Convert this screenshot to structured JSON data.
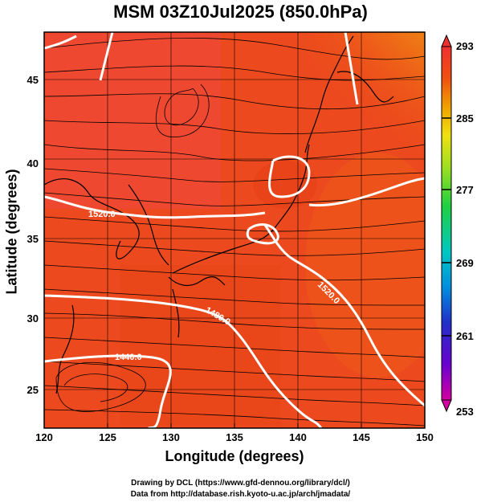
{
  "title": "MSM 03Z10Jul2025 (850.0hPa)",
  "axes": {
    "xlabel": "Longitude (degrees)",
    "ylabel": "Latitude  (degrees)",
    "xticks": [
      "120",
      "125",
      "130",
      "135",
      "140",
      "145",
      "150"
    ],
    "yticks": [
      "25",
      "30",
      "35",
      "40",
      "45"
    ],
    "xlim": [
      120,
      150
    ],
    "ylim": [
      22.5,
      47.5
    ]
  },
  "colorbar": {
    "labels": [
      "293",
      "285",
      "277",
      "269",
      "261",
      "253"
    ],
    "range": [
      253,
      293
    ],
    "colors": [
      "#d400a0",
      "#6a00d0",
      "#2030c8",
      "#0090e0",
      "#00c8c0",
      "#20d040",
      "#a0e020",
      "#f0e010",
      "#f0a000",
      "#f05010",
      "#f03030"
    ]
  },
  "contours": {
    "labels": [
      "1520.0",
      "1520.0",
      "1480.0",
      "1440.0"
    ]
  },
  "credits": {
    "line1": "Drawing by DCL (https://www.gfd-dennou.org/library/dcl/)",
    "line2": "Data from http://database.rish.kyoto-u.ac.jp/arch/jmadata/"
  }
}
